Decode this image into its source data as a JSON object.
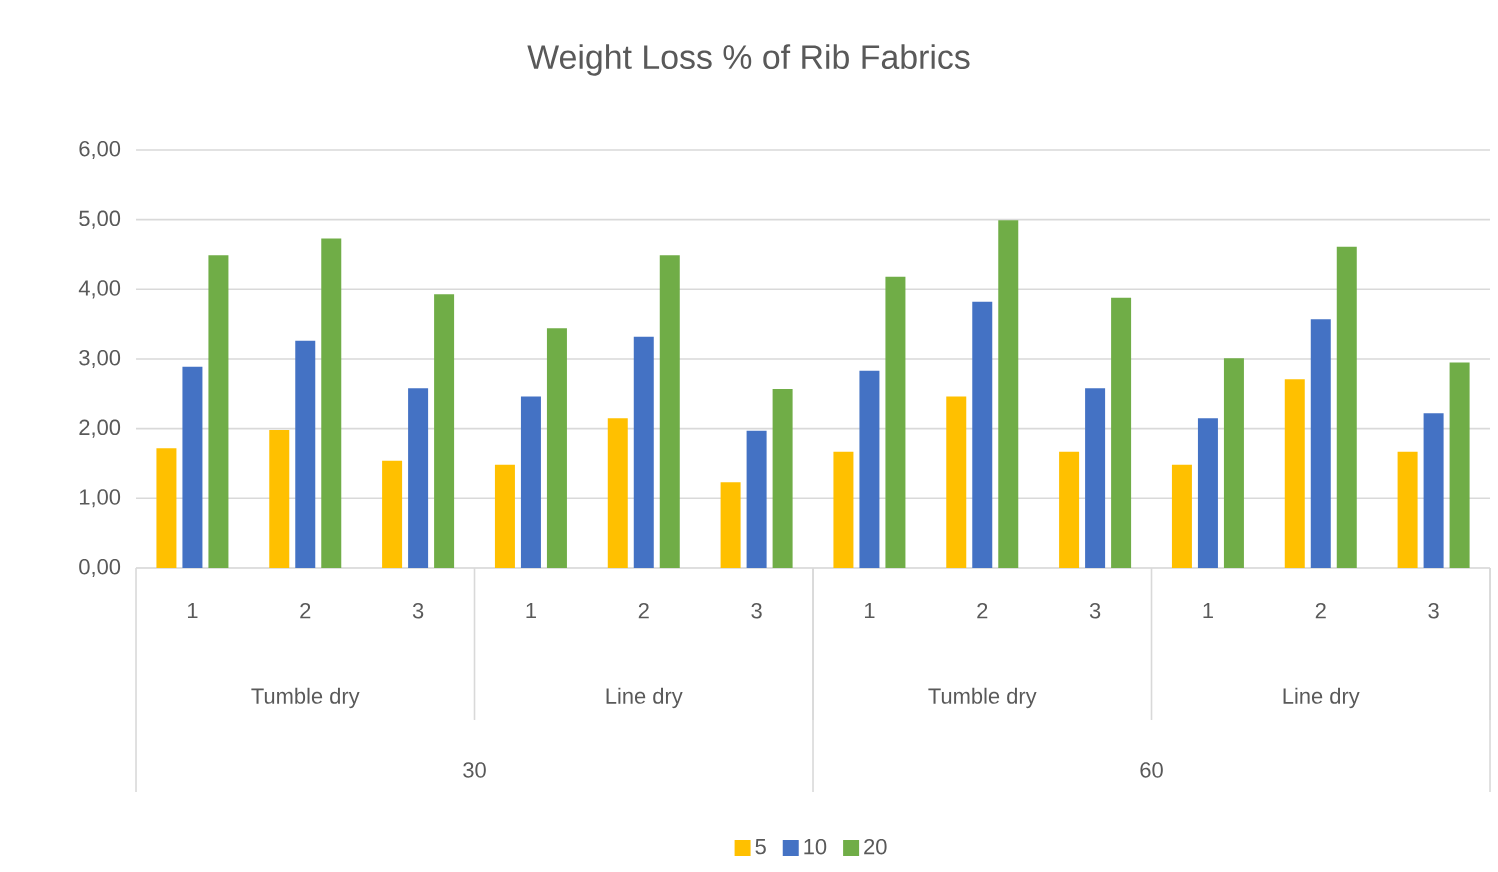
{
  "chart_data": {
    "type": "bar",
    "title": "Weight Loss % of Rib Fabrics",
    "categories": [
      "1",
      "2",
      "3",
      "1",
      "2",
      "3",
      "1",
      "2",
      "3",
      "1",
      "2",
      "3"
    ],
    "annotations": [
      "Tumble dry",
      "Line dry",
      "Tumble dry",
      "Line dry",
      "30",
      "60"
    ],
    "series": [
      {
        "name": "5",
        "color": "#ffc000",
        "values": [
          1.72,
          1.98,
          1.54,
          1.48,
          2.15,
          1.23,
          1.67,
          2.46,
          1.67,
          1.48,
          2.71,
          1.67
        ]
      },
      {
        "name": "10",
        "color": "#4472c4",
        "values": [
          2.89,
          3.26,
          2.58,
          2.46,
          3.32,
          1.97,
          2.83,
          3.82,
          2.58,
          2.15,
          3.57,
          2.22
        ]
      },
      {
        "name": "20",
        "color": "#70ad47",
        "values": [
          4.49,
          4.73,
          3.93,
          3.44,
          4.49,
          2.57,
          4.18,
          4.99,
          3.88,
          3.01,
          4.61,
          2.95
        ]
      }
    ],
    "ylim": [
      0,
      6
    ],
    "yticks": [
      {
        "value": 0,
        "label": "0,00"
      },
      {
        "value": 1,
        "label": "1,00"
      },
      {
        "value": 2,
        "label": "2,00"
      },
      {
        "value": 3,
        "label": "3,00"
      },
      {
        "value": 4,
        "label": "4,00"
      },
      {
        "value": 5,
        "label": "5,00"
      },
      {
        "value": 6,
        "label": "6,00"
      }
    ],
    "grid": "y",
    "legend": "bottom"
  }
}
